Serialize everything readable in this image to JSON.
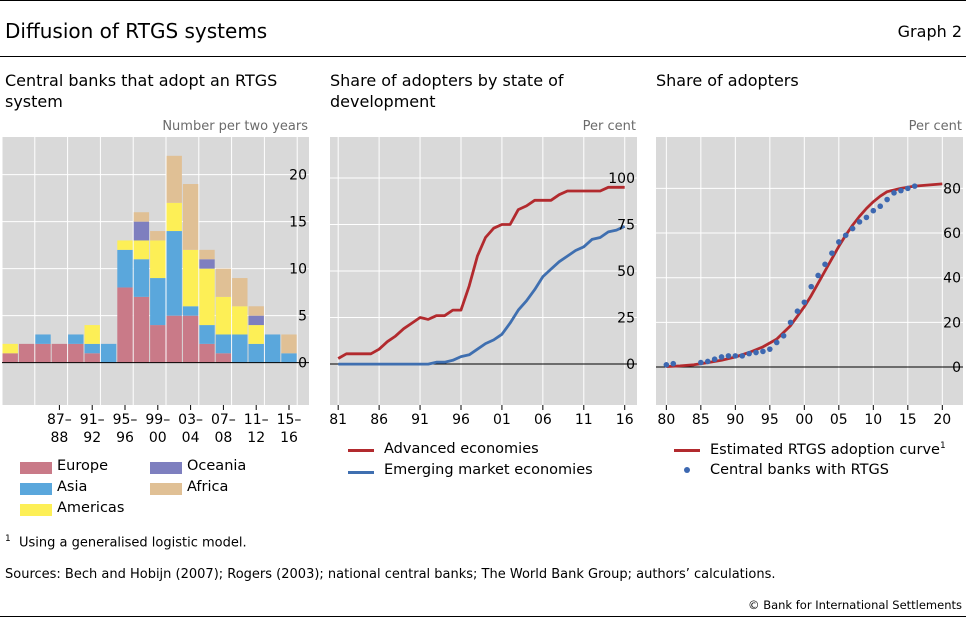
{
  "header": {
    "title": "Diffusion of RTGS systems",
    "graph_label": "Graph 2"
  },
  "footer": {
    "footnote_marker": "1",
    "footnote": "Using a generalised logistic model.",
    "sources": "Sources: Bech and Hobijn (2007); Rogers (2003); national central banks; The World Bank Group; authors’ calculations.",
    "copyright": "© Bank for International Settlements"
  },
  "colors": {
    "panel_bg": "#d9d9d9",
    "europe": "#c97a88",
    "asia": "#5aa7dc",
    "americas": "#fdef56",
    "oceania": "#7e7fbf",
    "africa": "#e0c095",
    "advanced": "#b22a2e",
    "emerging": "#3f6fb0",
    "dots": "#3d68b1"
  },
  "chart_data": [
    {
      "type": "bar",
      "stacked": true,
      "title": "Central banks that adopt an RTGS system",
      "ylabel": "Number per two years",
      "ylim": [
        -4.5,
        24
      ],
      "yticks": [
        0,
        5,
        10,
        15,
        20
      ],
      "tick_labels": [
        "87–\n88",
        "91–\n92",
        "95–\n96",
        "99–\n00",
        "03–\n04",
        "07–\n08",
        "11–\n12",
        "15–\n16"
      ],
      "categories": [
        "81–82",
        "83–84",
        "85–86",
        "87–88",
        "89–90",
        "91–92",
        "93–94",
        "95–96",
        "97–98",
        "99–00",
        "01–02",
        "03–04",
        "05–06",
        "07–08",
        "09–10",
        "11–12",
        "13–14",
        "15–16"
      ],
      "series": [
        {
          "name": "Europe",
          "values": [
            1,
            2,
            2,
            2,
            2,
            1,
            0,
            8,
            7,
            4,
            5,
            5,
            2,
            1,
            0,
            0,
            0,
            0
          ]
        },
        {
          "name": "Asia",
          "values": [
            0,
            0,
            1,
            0,
            1,
            1,
            2,
            4,
            4,
            5,
            9,
            1,
            2,
            2,
            3,
            2,
            3,
            1
          ]
        },
        {
          "name": "Americas",
          "values": [
            1,
            0,
            0,
            0,
            0,
            2,
            0,
            1,
            2,
            4,
            3,
            6,
            6,
            4,
            3,
            2,
            0,
            0
          ]
        },
        {
          "name": "Oceania",
          "values": [
            0,
            0,
            0,
            0,
            0,
            0,
            0,
            0,
            2,
            0,
            0,
            0,
            1,
            0,
            0,
            1,
            0,
            0
          ]
        },
        {
          "name": "Africa",
          "values": [
            0,
            0,
            0,
            0,
            0,
            0,
            0,
            0,
            1,
            1,
            5,
            7,
            1,
            3,
            3,
            1,
            0,
            2
          ]
        }
      ],
      "legend": [
        "Europe",
        "Asia",
        "Americas",
        "Oceania",
        "Africa"
      ],
      "legend_position": "bottom",
      "grid": true
    },
    {
      "type": "line",
      "title": "Share of adopters by state of development",
      "ylabel": "Per cent",
      "xlim": [
        1980,
        2017.5
      ],
      "ylim": [
        -22,
        122
      ],
      "xticks": [
        1981,
        1986,
        1991,
        1996,
        2001,
        2006,
        2011,
        2016
      ],
      "xtick_labels": [
        "81",
        "86",
        "91",
        "96",
        "01",
        "06",
        "11",
        "16"
      ],
      "yticks": [
        0,
        25,
        50,
        75,
        100
      ],
      "series": [
        {
          "name": "Advanced economies",
          "x": [
            1981,
            1982,
            1983,
            1984,
            1985,
            1986,
            1987,
            1988,
            1989,
            1990,
            1991,
            1992,
            1993,
            1994,
            1995,
            1996,
            1997,
            1998,
            1999,
            2000,
            2001,
            2002,
            2003,
            2004,
            2005,
            2006,
            2007,
            2008,
            2009,
            2010,
            2011,
            2012,
            2013,
            2014,
            2015,
            2016
          ],
          "y": [
            3,
            5.5,
            5.5,
            5.5,
            5.5,
            8,
            12,
            15,
            19,
            22,
            25,
            24,
            26,
            26,
            29,
            29,
            42,
            58,
            68,
            73,
            75,
            75,
            83,
            85,
            88,
            88,
            88,
            91,
            93,
            93,
            93,
            93,
            93,
            95,
            95,
            95
          ]
        },
        {
          "name": "Emerging market economies",
          "x": [
            1981,
            1982,
            1983,
            1984,
            1985,
            1986,
            1987,
            1988,
            1989,
            1990,
            1991,
            1992,
            1993,
            1994,
            1995,
            1996,
            1997,
            1998,
            1999,
            2000,
            2001,
            2002,
            2003,
            2004,
            2005,
            2006,
            2007,
            2008,
            2009,
            2010,
            2011,
            2012,
            2013,
            2014,
            2015,
            2016
          ],
          "y": [
            0,
            0,
            0,
            0,
            0,
            0,
            0,
            0,
            0,
            0,
            0,
            0,
            1,
            1,
            2,
            4,
            5,
            8,
            11,
            13,
            16,
            22,
            29,
            34,
            40,
            47,
            51,
            55,
            58,
            61,
            63,
            67,
            68,
            71,
            72,
            74
          ]
        }
      ],
      "legend_position": "bottom",
      "grid": true
    },
    {
      "type": "scatter",
      "title": "Share of adopters",
      "ylabel": "Per cent",
      "xlim": [
        1978.5,
        2023
      ],
      "ylim": [
        -17,
        103
      ],
      "xticks": [
        1980,
        1985,
        1990,
        1995,
        2000,
        2005,
        2010,
        2015,
        2020
      ],
      "xtick_labels": [
        "80",
        "85",
        "90",
        "95",
        "00",
        "05",
        "10",
        "15",
        "20"
      ],
      "yticks": [
        0,
        20,
        40,
        60,
        80
      ],
      "series": [
        {
          "name": "Central banks with RTGS",
          "x": [
            1980,
            1981,
            1985,
            1986,
            1987,
            1988,
            1989,
            1990,
            1991,
            1992,
            1993,
            1994,
            1995,
            1996,
            1997,
            1998,
            1999,
            2000,
            2001,
            2002,
            2003,
            2004,
            2005,
            2006,
            2007,
            2008,
            2009,
            2010,
            2011,
            2012,
            2013,
            2014,
            2015,
            2016
          ],
          "y": [
            1,
            1.5,
            2,
            2.5,
            3.5,
            4.5,
            5,
            5,
            5,
            6,
            6.5,
            7,
            8,
            11,
            14,
            20,
            25,
            29,
            36,
            41,
            46,
            51,
            56,
            59,
            62,
            65,
            67,
            70,
            72,
            75,
            78,
            79,
            80,
            81
          ]
        },
        {
          "name": "Estimated RTGS adoption curve",
          "x": [
            1980,
            1982,
            1984,
            1986,
            1988,
            1990,
            1992,
            1994,
            1996,
            1998,
            2000,
            2001,
            2002,
            2003,
            2004,
            2005,
            2006,
            2007,
            2008,
            2009,
            2010,
            2011,
            2012,
            2014,
            2016,
            2018,
            2020
          ],
          "y": [
            0.2,
            0.5,
            1,
            2,
            3,
            4.5,
            6.5,
            9,
            12.5,
            18.5,
            27,
            32,
            37.5,
            43,
            48.5,
            54,
            59,
            63.5,
            67.5,
            71,
            74,
            76.5,
            78.5,
            80,
            81,
            81.5,
            82
          ]
        }
      ],
      "legend": [
        "Estimated RTGS adoption curve",
        "Central banks with RTGS"
      ],
      "legend_footnote_marker": "1",
      "legend_position": "bottom",
      "grid": true
    }
  ]
}
